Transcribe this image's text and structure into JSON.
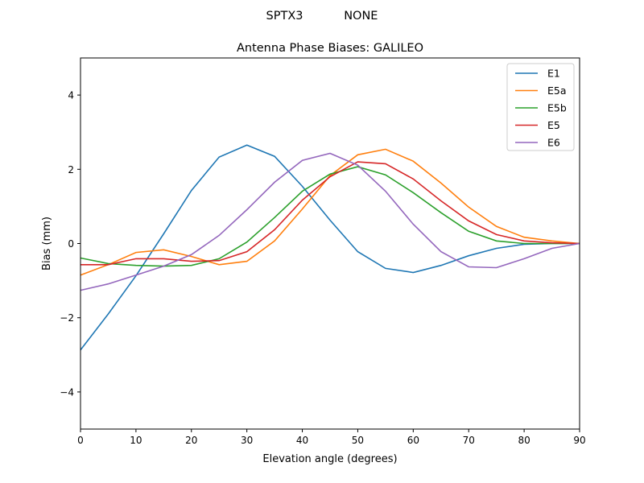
{
  "chart_data": {
    "type": "line",
    "suptitle": "SPTX3           NONE",
    "title": "Antenna Phase Biases: GALILEO",
    "xlabel": "Elevation angle (degrees)",
    "ylabel": "Bias (mm)",
    "xlim": [
      0,
      90
    ],
    "ylim": [
      -5,
      5
    ],
    "xticks": [
      0,
      10,
      20,
      30,
      40,
      50,
      60,
      70,
      80,
      90
    ],
    "yticks": [
      -4,
      -2,
      0,
      2,
      4
    ],
    "ytick_labels": [
      "−4",
      "−2",
      "0",
      "2",
      "4"
    ],
    "grid": false,
    "legend_position": "top-right",
    "x": [
      0,
      5,
      10,
      15,
      20,
      25,
      30,
      35,
      40,
      45,
      50,
      55,
      60,
      65,
      70,
      75,
      80,
      85,
      90
    ],
    "series": [
      {
        "name": "E1",
        "color": "#1f77b4",
        "values": [
          -2.87,
          -1.9,
          -0.87,
          0.26,
          1.43,
          2.33,
          2.65,
          2.35,
          1.54,
          0.63,
          -0.22,
          -0.67,
          -0.78,
          -0.59,
          -0.33,
          -0.13,
          -0.02,
          0,
          0
        ]
      },
      {
        "name": "E5a",
        "color": "#ff7f0e",
        "values": [
          -0.85,
          -0.57,
          -0.24,
          -0.17,
          -0.35,
          -0.57,
          -0.48,
          0.07,
          0.93,
          1.83,
          2.39,
          2.54,
          2.22,
          1.63,
          0.98,
          0.46,
          0.17,
          0.07,
          0
        ]
      },
      {
        "name": "E5b",
        "color": "#2ca02c",
        "values": [
          -0.39,
          -0.54,
          -0.59,
          -0.61,
          -0.59,
          -0.41,
          0.04,
          0.7,
          1.41,
          1.87,
          2.07,
          1.85,
          1.37,
          0.83,
          0.33,
          0.07,
          0,
          0,
          0
        ]
      },
      {
        "name": "E5",
        "color": "#d62728",
        "values": [
          -0.57,
          -0.57,
          -0.41,
          -0.41,
          -0.48,
          -0.46,
          -0.22,
          0.37,
          1.17,
          1.8,
          2.2,
          2.15,
          1.74,
          1.15,
          0.61,
          0.24,
          0.07,
          0.02,
          0
        ]
      },
      {
        "name": "E6",
        "color": "#9467bd",
        "values": [
          -1.26,
          -1.09,
          -0.85,
          -0.61,
          -0.3,
          0.22,
          0.91,
          1.65,
          2.24,
          2.43,
          2.11,
          1.41,
          0.52,
          -0.22,
          -0.63,
          -0.65,
          -0.41,
          -0.13,
          0
        ]
      }
    ]
  }
}
